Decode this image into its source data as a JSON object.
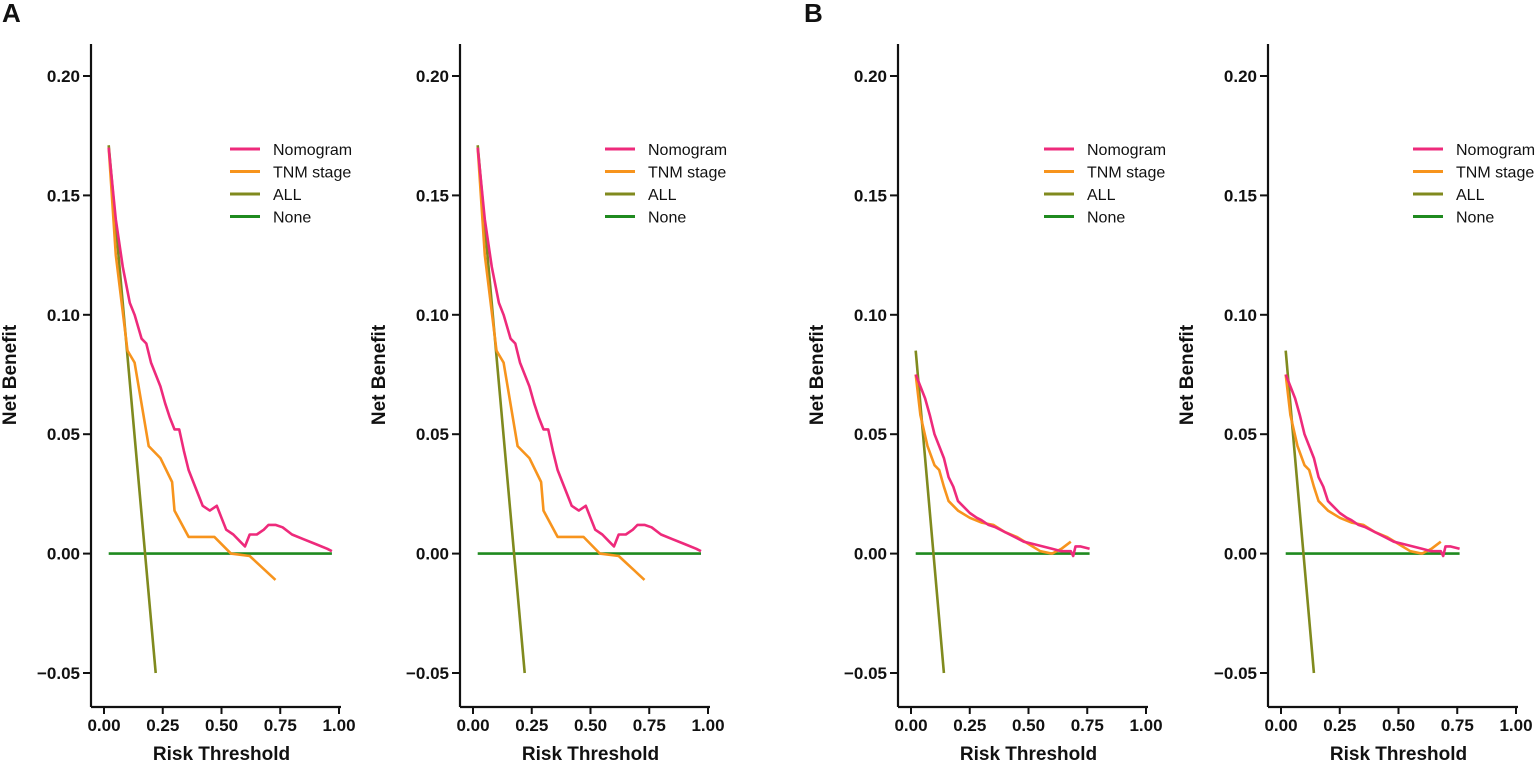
{
  "panel_labels": [
    "A",
    "B"
  ],
  "colors": {
    "Nomogram": "#ee2a7b",
    "TNM stage": "#f7941d",
    "ALL": "#808a1e",
    "None": "#1f8a1f"
  },
  "chart_data": [
    {
      "type": "line",
      "panel": "A",
      "xlabel": "Risk Threshold",
      "ylabel": "Net Benefit",
      "xlim": [
        0,
        1
      ],
      "ylim": [
        -0.05,
        0.2
      ],
      "xticks": [
        "0.00",
        "0.25",
        "0.50",
        "0.75",
        "1.00"
      ],
      "yticks": [
        "−0.05",
        "0.00",
        "0.05",
        "0.10",
        "0.15",
        "0.20"
      ],
      "legend": [
        "Nomogram",
        "TNM stage",
        "ALL",
        "None"
      ],
      "legend_position": "top-right",
      "series": [
        {
          "name": "Nomogram",
          "x": [
            0.02,
            0.05,
            0.08,
            0.11,
            0.13,
            0.16,
            0.18,
            0.2,
            0.22,
            0.24,
            0.26,
            0.28,
            0.3,
            0.32,
            0.34,
            0.36,
            0.38,
            0.4,
            0.42,
            0.45,
            0.48,
            0.5,
            0.52,
            0.55,
            0.58,
            0.6,
            0.62,
            0.65,
            0.68,
            0.7,
            0.73,
            0.76,
            0.8,
            0.85,
            0.9,
            0.95,
            0.97
          ],
          "y": [
            0.17,
            0.14,
            0.12,
            0.105,
            0.1,
            0.09,
            0.088,
            0.08,
            0.075,
            0.07,
            0.063,
            0.057,
            0.052,
            0.052,
            0.043,
            0.035,
            0.03,
            0.025,
            0.02,
            0.018,
            0.02,
            0.015,
            0.01,
            0.008,
            0.005,
            0.003,
            0.008,
            0.008,
            0.01,
            0.012,
            0.012,
            0.011,
            0.008,
            0.006,
            0.004,
            0.002,
            0.001
          ]
        },
        {
          "name": "TNM stage",
          "x": [
            0.02,
            0.05,
            0.1,
            0.13,
            0.19,
            0.24,
            0.29,
            0.3,
            0.36,
            0.47,
            0.54,
            0.62,
            0.73
          ],
          "y": [
            0.17,
            0.125,
            0.085,
            0.08,
            0.045,
            0.04,
            0.03,
            0.018,
            0.007,
            0.007,
            0.0,
            -0.001,
            -0.011
          ]
        },
        {
          "name": "ALL",
          "x": [
            0.02,
            0.22
          ],
          "y": [
            0.171,
            -0.05
          ]
        },
        {
          "name": "None",
          "x": [
            0.02,
            0.97
          ],
          "y": [
            0,
            0
          ]
        }
      ]
    },
    {
      "type": "line",
      "panel": "A",
      "xlabel": "Risk Threshold",
      "ylabel": "Net Benefit",
      "xlim": [
        0,
        1
      ],
      "ylim": [
        -0.05,
        0.2
      ],
      "xticks": [
        "0.00",
        "0.25",
        "0.50",
        "0.75",
        "1.00"
      ],
      "yticks": [
        "−0.05",
        "0.00",
        "0.05",
        "0.10",
        "0.15",
        "0.20"
      ],
      "legend": [
        "Nomogram",
        "TNM stage",
        "ALL",
        "None"
      ],
      "legend_position": "top-right",
      "series": [
        {
          "name": "Nomogram",
          "x": [
            0.02,
            0.05,
            0.08,
            0.11,
            0.13,
            0.16,
            0.18,
            0.2,
            0.22,
            0.24,
            0.26,
            0.28,
            0.3,
            0.32,
            0.34,
            0.36,
            0.38,
            0.4,
            0.42,
            0.45,
            0.48,
            0.5,
            0.52,
            0.55,
            0.58,
            0.6,
            0.62,
            0.65,
            0.68,
            0.7,
            0.73,
            0.76,
            0.8,
            0.85,
            0.9,
            0.95,
            0.97
          ],
          "y": [
            0.17,
            0.14,
            0.12,
            0.105,
            0.1,
            0.09,
            0.088,
            0.08,
            0.075,
            0.07,
            0.063,
            0.057,
            0.052,
            0.052,
            0.043,
            0.035,
            0.03,
            0.025,
            0.02,
            0.018,
            0.02,
            0.015,
            0.01,
            0.008,
            0.005,
            0.003,
            0.008,
            0.008,
            0.01,
            0.012,
            0.012,
            0.011,
            0.008,
            0.006,
            0.004,
            0.002,
            0.001
          ]
        },
        {
          "name": "TNM stage",
          "x": [
            0.02,
            0.05,
            0.1,
            0.13,
            0.19,
            0.24,
            0.29,
            0.3,
            0.36,
            0.47,
            0.54,
            0.62,
            0.73
          ],
          "y": [
            0.17,
            0.125,
            0.085,
            0.08,
            0.045,
            0.04,
            0.03,
            0.018,
            0.007,
            0.007,
            0.0,
            -0.001,
            -0.011
          ]
        },
        {
          "name": "ALL",
          "x": [
            0.02,
            0.22
          ],
          "y": [
            0.171,
            -0.05
          ]
        },
        {
          "name": "None",
          "x": [
            0.02,
            0.97
          ],
          "y": [
            0,
            0
          ]
        }
      ]
    },
    {
      "type": "line",
      "panel": "B",
      "xlabel": "Risk Threshold",
      "ylabel": "Net Benefit",
      "xlim": [
        0,
        1
      ],
      "ylim": [
        -0.05,
        0.2
      ],
      "xticks": [
        "0.00",
        "0.25",
        "0.50",
        "0.75",
        "1.00"
      ],
      "yticks": [
        "−0.05",
        "0.00",
        "0.05",
        "0.10",
        "0.15",
        "0.20"
      ],
      "legend": [
        "Nomogram",
        "TNM stage",
        "ALL",
        "None"
      ],
      "legend_position": "top-right",
      "series": [
        {
          "name": "Nomogram",
          "x": [
            0.02,
            0.04,
            0.06,
            0.08,
            0.1,
            0.12,
            0.14,
            0.16,
            0.18,
            0.2,
            0.22,
            0.25,
            0.28,
            0.3,
            0.33,
            0.36,
            0.4,
            0.44,
            0.48,
            0.52,
            0.56,
            0.6,
            0.64,
            0.68,
            0.69,
            0.7,
            0.72,
            0.76
          ],
          "y": [
            0.075,
            0.07,
            0.065,
            0.058,
            0.05,
            0.045,
            0.04,
            0.032,
            0.028,
            0.022,
            0.02,
            0.017,
            0.015,
            0.014,
            0.012,
            0.011,
            0.009,
            0.007,
            0.005,
            0.004,
            0.003,
            0.002,
            0.001,
            0.001,
            -0.001,
            0.003,
            0.003,
            0.002
          ]
        },
        {
          "name": "TNM stage",
          "x": [
            0.02,
            0.04,
            0.07,
            0.1,
            0.12,
            0.14,
            0.16,
            0.2,
            0.25,
            0.3,
            0.35,
            0.4,
            0.45,
            0.5,
            0.55,
            0.6,
            0.64,
            0.68
          ],
          "y": [
            0.075,
            0.058,
            0.045,
            0.037,
            0.035,
            0.028,
            0.022,
            0.018,
            0.015,
            0.013,
            0.012,
            0.009,
            0.007,
            0.004,
            0.001,
            0.0,
            0.002,
            0.005
          ]
        },
        {
          "name": "ALL",
          "x": [
            0.02,
            0.14
          ],
          "y": [
            0.085,
            -0.05
          ]
        },
        {
          "name": "None",
          "x": [
            0.02,
            0.76
          ],
          "y": [
            0,
            0
          ]
        }
      ]
    },
    {
      "type": "line",
      "panel": "B",
      "xlabel": "Risk Threshold",
      "ylabel": "Net Benefit",
      "xlim": [
        0,
        1
      ],
      "ylim": [
        -0.05,
        0.2
      ],
      "xticks": [
        "0.00",
        "0.25",
        "0.50",
        "0.75",
        "1.00"
      ],
      "yticks": [
        "−0.05",
        "0.00",
        "0.05",
        "0.10",
        "0.15",
        "0.20"
      ],
      "legend": [
        "Nomogram",
        "TNM stage",
        "ALL",
        "None"
      ],
      "legend_position": "top-right",
      "series": [
        {
          "name": "Nomogram",
          "x": [
            0.02,
            0.04,
            0.06,
            0.08,
            0.1,
            0.12,
            0.14,
            0.16,
            0.18,
            0.2,
            0.22,
            0.25,
            0.28,
            0.3,
            0.33,
            0.36,
            0.4,
            0.44,
            0.48,
            0.52,
            0.56,
            0.6,
            0.64,
            0.68,
            0.69,
            0.7,
            0.72,
            0.76
          ],
          "y": [
            0.075,
            0.07,
            0.065,
            0.058,
            0.05,
            0.045,
            0.04,
            0.032,
            0.028,
            0.022,
            0.02,
            0.017,
            0.015,
            0.014,
            0.012,
            0.011,
            0.009,
            0.007,
            0.005,
            0.004,
            0.003,
            0.002,
            0.001,
            0.001,
            -0.001,
            0.003,
            0.003,
            0.002
          ]
        },
        {
          "name": "TNM stage",
          "x": [
            0.02,
            0.04,
            0.07,
            0.1,
            0.12,
            0.14,
            0.16,
            0.2,
            0.25,
            0.3,
            0.35,
            0.4,
            0.45,
            0.5,
            0.55,
            0.6,
            0.64,
            0.68
          ],
          "y": [
            0.075,
            0.058,
            0.045,
            0.037,
            0.035,
            0.028,
            0.022,
            0.018,
            0.015,
            0.013,
            0.012,
            0.009,
            0.007,
            0.004,
            0.001,
            0.0,
            0.002,
            0.005
          ]
        },
        {
          "name": "ALL",
          "x": [
            0.02,
            0.14
          ],
          "y": [
            0.085,
            -0.05
          ]
        },
        {
          "name": "None",
          "x": [
            0.02,
            0.76
          ],
          "y": [
            0,
            0
          ]
        }
      ]
    }
  ]
}
